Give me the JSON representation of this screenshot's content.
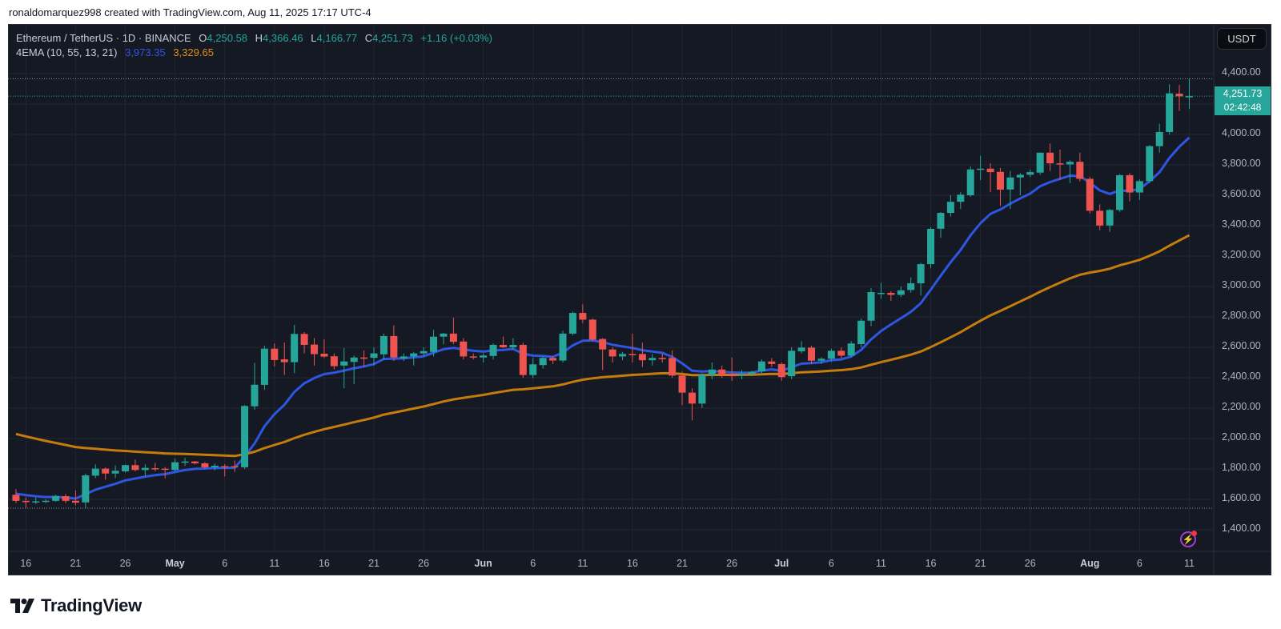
{
  "credit": "ronaldomarquez998 created with TradingView.com, Aug 11, 2025 17:17 UTC-4",
  "legend": {
    "symbol": "Ethereum / TetherUS · 1D · BINANCE",
    "o_label": "O",
    "o": "4,250.58",
    "h_label": "H",
    "h": "4,366.46",
    "l_label": "L",
    "l": "4,166.77",
    "c_label": "C",
    "c": "4,251.73",
    "change": "+1.16 (+0.03%)",
    "indicator": "4EMA (10, 55, 13, 21)",
    "ema_fast": "3,973.35",
    "ema_slow": "3,329.65"
  },
  "currency_button": "USDT",
  "last_price": {
    "price": "4,251.73",
    "countdown": "02:42:48"
  },
  "branding": "TradingView",
  "alert_icon": "lightning-bolt-icon",
  "colors": {
    "background": "#151924",
    "up": "#26a69a",
    "down": "#ef5350",
    "ema_fast": "#2e56e0",
    "ema_slow": "#c47c0c",
    "grid": "#222633"
  },
  "chart_data": {
    "type": "candlestick",
    "title": "Ethereum / TetherUS · 1D · BINANCE",
    "ylim": [
      1300,
      4550
    ],
    "grid": true,
    "y_ticks": [
      "4,400.00",
      "4,000.00",
      "3,800.00",
      "3,600.00",
      "3,400.00",
      "3,200.00",
      "3,000.00",
      "2,800.00",
      "2,600.00",
      "2,400.00",
      "2,200.00",
      "2,000.00",
      "1,800.00",
      "1,600.00",
      "1,400.00"
    ],
    "x_ticks": [
      {
        "date": "2025-04-16",
        "label": "16"
      },
      {
        "date": "2025-04-21",
        "label": "21"
      },
      {
        "date": "2025-04-26",
        "label": "26"
      },
      {
        "date": "2025-05-01",
        "label": "May",
        "month": true
      },
      {
        "date": "2025-05-06",
        "label": "6"
      },
      {
        "date": "2025-05-11",
        "label": "11"
      },
      {
        "date": "2025-05-16",
        "label": "16"
      },
      {
        "date": "2025-05-21",
        "label": "21"
      },
      {
        "date": "2025-05-26",
        "label": "26"
      },
      {
        "date": "2025-06-01",
        "label": "Jun",
        "month": true
      },
      {
        "date": "2025-06-06",
        "label": "6"
      },
      {
        "date": "2025-06-11",
        "label": "11"
      },
      {
        "date": "2025-06-16",
        "label": "16"
      },
      {
        "date": "2025-06-21",
        "label": "21"
      },
      {
        "date": "2025-06-26",
        "label": "26"
      },
      {
        "date": "2025-07-01",
        "label": "Jul",
        "month": true
      },
      {
        "date": "2025-07-06",
        "label": "6"
      },
      {
        "date": "2025-07-11",
        "label": "11"
      },
      {
        "date": "2025-07-16",
        "label": "16"
      },
      {
        "date": "2025-07-21",
        "label": "21"
      },
      {
        "date": "2025-07-26",
        "label": "26"
      },
      {
        "date": "2025-08-01",
        "label": "Aug",
        "month": true
      },
      {
        "date": "2025-08-06",
        "label": "6"
      },
      {
        "date": "2025-08-11",
        "label": "11"
      }
    ],
    "columns": [
      "date",
      "open",
      "high",
      "low",
      "close"
    ],
    "candles": [
      [
        "2025-04-15",
        1630,
        1668,
        1575,
        1590
      ],
      [
        "2025-04-16",
        1590,
        1614,
        1545,
        1583
      ],
      [
        "2025-04-17",
        1583,
        1612,
        1570,
        1587
      ],
      [
        "2025-04-18",
        1585,
        1600,
        1575,
        1591
      ],
      [
        "2025-04-19",
        1590,
        1630,
        1585,
        1621
      ],
      [
        "2025-04-20",
        1621,
        1635,
        1575,
        1590
      ],
      [
        "2025-04-21",
        1591,
        1659,
        1560,
        1578
      ],
      [
        "2025-04-22",
        1580,
        1770,
        1542,
        1758
      ],
      [
        "2025-04-23",
        1756,
        1830,
        1740,
        1802
      ],
      [
        "2025-04-24",
        1802,
        1810,
        1730,
        1770
      ],
      [
        "2025-04-25",
        1770,
        1822,
        1740,
        1788
      ],
      [
        "2025-04-26",
        1784,
        1830,
        1776,
        1825
      ],
      [
        "2025-04-27",
        1825,
        1862,
        1785,
        1793
      ],
      [
        "2025-04-28",
        1793,
        1830,
        1750,
        1807
      ],
      [
        "2025-04-29",
        1805,
        1840,
        1785,
        1800
      ],
      [
        "2025-04-30",
        1802,
        1812,
        1739,
        1797
      ],
      [
        "2025-05-01",
        1793,
        1870,
        1785,
        1844
      ],
      [
        "2025-05-02",
        1844,
        1873,
        1820,
        1849
      ],
      [
        "2025-05-03",
        1849,
        1852,
        1830,
        1837
      ],
      [
        "2025-05-04",
        1837,
        1845,
        1800,
        1811
      ],
      [
        "2025-05-05",
        1811,
        1835,
        1790,
        1821
      ],
      [
        "2025-05-06",
        1818,
        1832,
        1751,
        1814
      ],
      [
        "2025-05-07",
        1818,
        1855,
        1780,
        1811
      ],
      [
        "2025-05-08",
        1811,
        2220,
        1800,
        2214
      ],
      [
        "2025-05-09",
        2212,
        2498,
        2190,
        2354
      ],
      [
        "2025-05-10",
        2353,
        2610,
        2320,
        2591
      ],
      [
        "2025-05-11",
        2591,
        2625,
        2474,
        2516
      ],
      [
        "2025-05-12",
        2521,
        2632,
        2418,
        2502
      ],
      [
        "2025-05-13",
        2502,
        2748,
        2430,
        2688
      ],
      [
        "2025-05-14",
        2688,
        2700,
        2560,
        2616
      ],
      [
        "2025-05-15",
        2618,
        2660,
        2480,
        2555
      ],
      [
        "2025-05-16",
        2558,
        2653,
        2530,
        2539
      ],
      [
        "2025-05-17",
        2541,
        2560,
        2455,
        2476
      ],
      [
        "2025-05-18",
        2480,
        2595,
        2331,
        2507
      ],
      [
        "2025-05-19",
        2504,
        2545,
        2358,
        2533
      ],
      [
        "2025-05-20",
        2533,
        2580,
        2470,
        2528
      ],
      [
        "2025-05-21",
        2531,
        2600,
        2480,
        2560
      ],
      [
        "2025-05-22",
        2554,
        2690,
        2520,
        2674
      ],
      [
        "2025-05-23",
        2674,
        2744,
        2510,
        2533
      ],
      [
        "2025-05-24",
        2527,
        2560,
        2510,
        2540
      ],
      [
        "2025-05-25",
        2540,
        2570,
        2480,
        2560
      ],
      [
        "2025-05-26",
        2560,
        2600,
        2545,
        2575
      ],
      [
        "2025-05-27",
        2570,
        2715,
        2540,
        2670
      ],
      [
        "2025-05-28",
        2670,
        2695,
        2620,
        2690
      ],
      [
        "2025-05-29",
        2690,
        2795,
        2620,
        2636
      ],
      [
        "2025-05-30",
        2638,
        2660,
        2520,
        2540
      ],
      [
        "2025-05-31",
        2540,
        2560,
        2520,
        2538
      ],
      [
        "2025-06-01",
        2533,
        2560,
        2500,
        2546
      ],
      [
        "2025-06-02",
        2543,
        2625,
        2520,
        2616
      ],
      [
        "2025-06-03",
        2616,
        2670,
        2595,
        2600
      ],
      [
        "2025-06-04",
        2600,
        2660,
        2585,
        2616
      ],
      [
        "2025-06-05",
        2616,
        2630,
        2400,
        2418
      ],
      [
        "2025-06-06",
        2418,
        2530,
        2398,
        2488
      ],
      [
        "2025-06-07",
        2483,
        2540,
        2460,
        2530
      ],
      [
        "2025-06-08",
        2530,
        2540,
        2490,
        2513
      ],
      [
        "2025-06-09",
        2513,
        2710,
        2500,
        2690
      ],
      [
        "2025-06-10",
        2690,
        2835,
        2680,
        2826
      ],
      [
        "2025-06-11",
        2826,
        2882,
        2760,
        2782
      ],
      [
        "2025-06-12",
        2782,
        2790,
        2640,
        2650
      ],
      [
        "2025-06-13",
        2655,
        2660,
        2450,
        2586
      ],
      [
        "2025-06-14",
        2586,
        2600,
        2500,
        2540
      ],
      [
        "2025-06-15",
        2540,
        2570,
        2515,
        2556
      ],
      [
        "2025-06-16",
        2556,
        2690,
        2500,
        2552
      ],
      [
        "2025-06-17",
        2556,
        2630,
        2470,
        2515
      ],
      [
        "2025-06-18",
        2515,
        2555,
        2480,
        2530
      ],
      [
        "2025-06-19",
        2530,
        2560,
        2500,
        2528
      ],
      [
        "2025-06-20",
        2530,
        2580,
        2400,
        2414
      ],
      [
        "2025-06-21",
        2414,
        2440,
        2220,
        2302
      ],
      [
        "2025-06-22",
        2302,
        2330,
        2120,
        2230
      ],
      [
        "2025-06-23",
        2230,
        2430,
        2200,
        2419
      ],
      [
        "2025-06-24",
        2416,
        2500,
        2390,
        2454
      ],
      [
        "2025-06-25",
        2454,
        2480,
        2400,
        2418
      ],
      [
        "2025-06-26",
        2418,
        2533,
        2380,
        2415
      ],
      [
        "2025-06-27",
        2415,
        2450,
        2390,
        2425
      ],
      [
        "2025-06-28",
        2425,
        2445,
        2410,
        2438
      ],
      [
        "2025-06-29",
        2442,
        2520,
        2420,
        2507
      ],
      [
        "2025-06-30",
        2507,
        2530,
        2470,
        2490
      ],
      [
        "2025-07-01",
        2490,
        2500,
        2380,
        2404
      ],
      [
        "2025-07-02",
        2410,
        2600,
        2390,
        2577
      ],
      [
        "2025-07-03",
        2574,
        2640,
        2560,
        2598
      ],
      [
        "2025-07-04",
        2598,
        2610,
        2490,
        2512
      ],
      [
        "2025-07-05",
        2512,
        2535,
        2490,
        2525
      ],
      [
        "2025-07-06",
        2525,
        2590,
        2505,
        2577
      ],
      [
        "2025-07-07",
        2577,
        2600,
        2530,
        2545
      ],
      [
        "2025-07-08",
        2546,
        2640,
        2535,
        2625
      ],
      [
        "2025-07-09",
        2621,
        2790,
        2600,
        2775
      ],
      [
        "2025-07-10",
        2775,
        2990,
        2740,
        2963
      ],
      [
        "2025-07-11",
        2958,
        3025,
        2920,
        2958
      ],
      [
        "2025-07-12",
        2958,
        2970,
        2905,
        2945
      ],
      [
        "2025-07-13",
        2945,
        3000,
        2930,
        2975
      ],
      [
        "2025-07-14",
        2977,
        3060,
        2960,
        3021
      ],
      [
        "2025-07-15",
        3021,
        3155,
        2940,
        3147
      ],
      [
        "2025-07-16",
        3147,
        3390,
        3120,
        3379
      ],
      [
        "2025-07-17",
        3380,
        3490,
        3320,
        3484
      ],
      [
        "2025-07-18",
        3484,
        3600,
        3460,
        3557
      ],
      [
        "2025-07-19",
        3557,
        3620,
        3510,
        3604
      ],
      [
        "2025-07-20",
        3600,
        3790,
        3590,
        3770
      ],
      [
        "2025-07-21",
        3770,
        3860,
        3700,
        3775
      ],
      [
        "2025-07-22",
        3775,
        3810,
        3620,
        3752
      ],
      [
        "2025-07-23",
        3754,
        3780,
        3530,
        3637
      ],
      [
        "2025-07-24",
        3638,
        3760,
        3510,
        3717
      ],
      [
        "2025-07-25",
        3717,
        3745,
        3600,
        3735
      ],
      [
        "2025-07-26",
        3735,
        3770,
        3720,
        3752
      ],
      [
        "2025-07-27",
        3749,
        3880,
        3735,
        3880
      ],
      [
        "2025-07-28",
        3880,
        3940,
        3760,
        3810
      ],
      [
        "2025-07-29",
        3810,
        3900,
        3700,
        3806
      ],
      [
        "2025-07-30",
        3803,
        3830,
        3680,
        3820
      ],
      [
        "2025-07-31",
        3820,
        3880,
        3690,
        3708
      ],
      [
        "2025-08-01",
        3708,
        3720,
        3480,
        3498
      ],
      [
        "2025-08-02",
        3498,
        3540,
        3370,
        3401
      ],
      [
        "2025-08-03",
        3401,
        3510,
        3360,
        3503
      ],
      [
        "2025-08-04",
        3503,
        3740,
        3490,
        3732
      ],
      [
        "2025-08-05",
        3732,
        3745,
        3560,
        3618
      ],
      [
        "2025-08-06",
        3618,
        3705,
        3570,
        3693
      ],
      [
        "2025-08-07",
        3693,
        3930,
        3680,
        3923
      ],
      [
        "2025-08-08",
        3923,
        4070,
        3880,
        4016
      ],
      [
        "2025-08-09",
        4016,
        4330,
        4000,
        4270
      ],
      [
        "2025-08-10",
        4268,
        4325,
        4155,
        4250.58
      ],
      [
        "2025-08-11",
        4250.58,
        4366.46,
        4166.77,
        4251.73
      ]
    ],
    "series": [
      {
        "name": "4EMA (10, 55, 13, 21)",
        "kind": "ema",
        "period": 10,
        "last": 3973.35,
        "color": "#2e56e0"
      },
      {
        "name": "4EMA (10, 55, 13, 21)",
        "kind": "ema",
        "period": 55,
        "last": 3329.65,
        "color": "#c47c0c"
      }
    ],
    "last_price": 4251.73,
    "visible_high": 4366.46,
    "visible_low": 1542
  }
}
